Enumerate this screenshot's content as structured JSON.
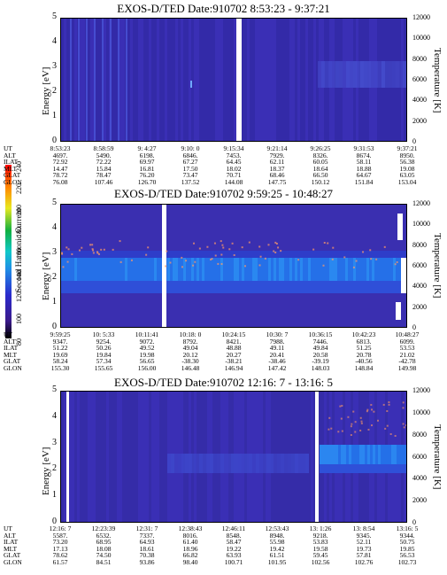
{
  "colorbar": {
    "label": "Second Harmonic Current",
    "ticks": [
      "80",
      "100",
      "120",
      "140",
      "160",
      "180",
      "200",
      "220",
      "240"
    ]
  },
  "chart_data": [
    {
      "type": "heatmap",
      "title": "EXOS-D/TED   Date:910702  8:53:23 - 9:37:21",
      "ylabel": "Energy [eV]",
      "ylabel_right": "Temperature [K]",
      "ylim": [
        0,
        5
      ],
      "ylim_right": [
        0,
        12000
      ],
      "yticks": [
        "0",
        "1",
        "2",
        "3",
        "4",
        "5"
      ],
      "yticks_right": [
        "0",
        "2000",
        "4000",
        "6000",
        "8000",
        "10000",
        "12000"
      ],
      "row_labels": [
        "UT",
        "ALT",
        "ILAT",
        "MLT",
        "GLAT",
        "GLON"
      ],
      "columns": [
        [
          "8:53:23",
          "4697.",
          "72.92",
          "14.47",
          "78.72",
          "76.08"
        ],
        [
          "8:58:59",
          "5490.",
          "72.22",
          "15.84",
          "78.47",
          "107.46"
        ],
        [
          "9: 4:27",
          "6198.",
          "69.97",
          "16.81",
          "76.20",
          "126.70"
        ],
        [
          "9:10: 0",
          "6846.",
          "67.27",
          "17.50",
          "73.47",
          "137.52"
        ],
        [
          "9:15:34",
          "7453.",
          "64.45",
          "18.02",
          "70.71",
          "144.08"
        ],
        [
          "9:21:14",
          "7929.",
          "62.11",
          "18.37",
          "68.46",
          "147.75"
        ],
        [
          "9:26:25",
          "8326.",
          "60.05",
          "18.64",
          "66.50",
          "150.12"
        ],
        [
          "9:31:53",
          "8674.",
          "58.11",
          "18.88",
          "64.67",
          "151.84"
        ],
        [
          "9:37:21",
          "8950.",
          "56.38",
          "19.08",
          "63.05",
          "153.04"
        ]
      ]
    },
    {
      "type": "heatmap",
      "title": "EXOS-D/TED   Date:910702  9:59:25 - 10:48:27",
      "ylabel": "Energy [eV]",
      "ylabel_right": "Temperature [K]",
      "ylim": [
        0,
        5
      ],
      "ylim_right": [
        0,
        12000
      ],
      "yticks": [
        "0",
        "1",
        "2",
        "3",
        "4",
        "5"
      ],
      "yticks_right": [
        "0",
        "2000",
        "4000",
        "6000",
        "8000",
        "10000",
        "12000"
      ],
      "row_labels": [
        "UT",
        "ALT",
        "ILAT",
        "MLT",
        "GLAT",
        "GLON"
      ],
      "columns": [
        [
          "9:59:25",
          "9347.",
          "51.22",
          "19.69",
          "58.24",
          "155.30"
        ],
        [
          "10: 5:33",
          "9254.",
          "50.26",
          "19.84",
          "57.34",
          "155.65"
        ],
        [
          "10:11:41",
          "9072.",
          "49.52",
          "19.98",
          "56.65",
          "156.00"
        ],
        [
          "10:18: 0",
          "8792.",
          "49.04",
          "20.12",
          "-38.30",
          "146.48"
        ],
        [
          "10:24:15",
          "8421.",
          "48.88",
          "20.27",
          "-38.21",
          "146.94"
        ],
        [
          "10:30: 7",
          "7988.",
          "49.11",
          "20.41",
          "-38.46",
          "147.42"
        ],
        [
          "10:36:15",
          "7446.",
          "49.84",
          "20.58",
          "-39.19",
          "148.03"
        ],
        [
          "10:42:23",
          "6813.",
          "51.25",
          "20.78",
          "-40.56",
          "148.84"
        ],
        [
          "10:48:27",
          "6099.",
          "53.53",
          "21.02",
          "-42.78",
          "149.98"
        ]
      ]
    },
    {
      "type": "heatmap",
      "title": "EXOS-D/TED   Date:910702  12:16: 7 - 13:16: 5",
      "ylabel": "Energy [eV]",
      "ylabel_right": "Temperature [K]",
      "ylim": [
        0,
        5
      ],
      "ylim_right": [
        0,
        12000
      ],
      "yticks": [
        "0",
        "1",
        "2",
        "3",
        "4",
        "5"
      ],
      "yticks_right": [
        "0",
        "2000",
        "4000",
        "6000",
        "8000",
        "10000",
        "12000"
      ],
      "row_labels": [
        "UT",
        "ALT",
        "ILAT",
        "MLT",
        "GLAT",
        "GLON"
      ],
      "columns": [
        [
          "12:16: 7",
          "5587.",
          "73.20",
          "17.13",
          "78.62",
          "61.57"
        ],
        [
          "12:23:39",
          "6532.",
          "68.95",
          "18.08",
          "74.50",
          "84.51"
        ],
        [
          "12:31: 7",
          "7337.",
          "64.93",
          "18.61",
          "70.38",
          "93.86"
        ],
        [
          "12:38:43",
          "8016.",
          "61.40",
          "18.96",
          "66.82",
          "98.40"
        ],
        [
          "12:46:11",
          "8548.",
          "58.47",
          "19.22",
          "63.93",
          "100.71"
        ],
        [
          "12:53:43",
          "8948.",
          "55.98",
          "19.42",
          "61.51",
          "101.95"
        ],
        [
          "13: 1:26",
          "9218.",
          "53.83",
          "19.58",
          "59.45",
          "102.56"
        ],
        [
          "13: 8:54",
          "9345.",
          "52.11",
          "19.73",
          "57.81",
          "102.76"
        ],
        [
          "13:16: 5",
          "9344.",
          "50.75",
          "19.85",
          "56.53",
          "102.73"
        ]
      ]
    }
  ]
}
